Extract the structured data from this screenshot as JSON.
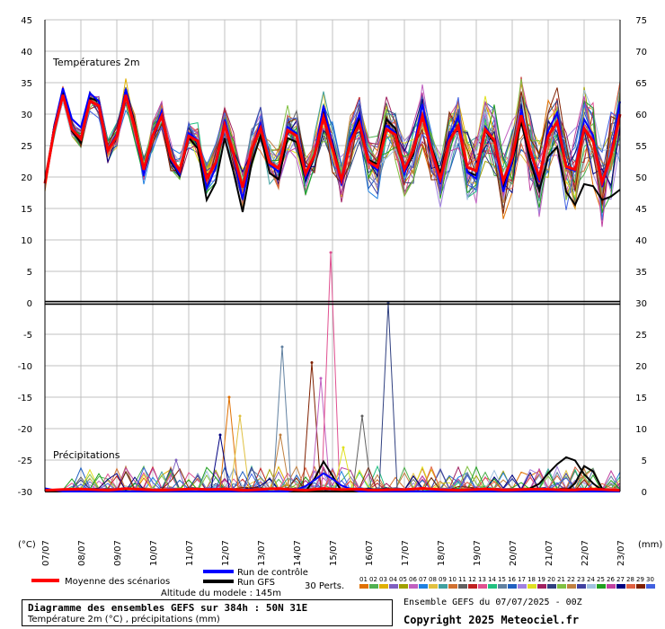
{
  "chart_data": {
    "type": "line",
    "temp_label": "Températures 2m",
    "precip_label": "Précipitations",
    "x_labels": [
      "07/07",
      "08/07",
      "09/07",
      "10/07",
      "11/07",
      "12/07",
      "13/07",
      "14/07",
      "15/07",
      "16/07",
      "17/07",
      "18/07",
      "19/07",
      "20/07",
      "21/07",
      "22/07",
      "23/07"
    ],
    "y_left_ticks": [
      45,
      40,
      35,
      30,
      25,
      20,
      15,
      10,
      5,
      0,
      -5,
      -10,
      -15,
      -20,
      -25,
      -30
    ],
    "y_right_ticks": [
      75,
      70,
      65,
      60,
      55,
      50,
      45,
      40,
      35,
      30,
      25,
      20,
      15,
      10,
      5,
      0
    ],
    "left_unit": "(°C)",
    "right_unit": "(mm)",
    "ylim_temp": [
      -30,
      45
    ],
    "ylim_precip": [
      0,
      75
    ],
    "grid": true,
    "legend": {
      "mean": "Moyenne des scénarios",
      "control": "Run de contrôle",
      "gfs": "Run GFS",
      "perts": "30 Perts.",
      "altitude": "Altitude du modele : 145m"
    },
    "pert_labels": [
      "01",
      "02",
      "03",
      "04",
      "05",
      "06",
      "07",
      "08",
      "09",
      "10",
      "11",
      "12",
      "13",
      "14",
      "15",
      "16",
      "17",
      "18",
      "19",
      "20",
      "21",
      "22",
      "23",
      "24",
      "25",
      "26",
      "27",
      "28",
      "29",
      "30"
    ],
    "pert_colors": [
      "#e07000",
      "#50b050",
      "#e0b000",
      "#8060c0",
      "#a0a000",
      "#c060c0",
      "#2080e0",
      "#e0c040",
      "#40a0a0",
      "#d07030",
      "#606060",
      "#c02020",
      "#e05090",
      "#20c080",
      "#6080a0",
      "#2060c0",
      "#a080e0",
      "#e0e020",
      "#a02060",
      "#304080",
      "#80c040",
      "#c08040",
      "#4040a0",
      "#a0c0e0",
      "#20a020",
      "#c040a0",
      "#000080",
      "#e06040",
      "#802000",
      "#4060e0"
    ],
    "mean_temp": [
      19,
      34,
      24,
      35,
      22,
      34,
      21,
      31,
      19,
      29,
      18,
      29,
      18,
      29,
      19,
      30,
      19,
      30,
      19,
      30,
      19,
      30,
      20,
      30,
      19,
      30,
      18,
      30,
      18,
      30,
      19,
      31,
      18,
      30,
      18,
      30
    ],
    "control_temp": [
      19,
      35,
      26,
      36,
      22,
      35,
      20,
      32,
      18,
      30,
      16,
      30,
      16,
      30,
      18,
      31,
      18,
      32,
      18,
      32,
      18,
      31,
      19,
      32,
      18,
      32,
      16,
      31,
      16,
      31,
      18,
      33,
      17,
      32,
      17,
      32
    ],
    "gfs_temp": [
      19,
      35,
      23,
      36,
      22,
      35,
      21,
      31,
      18,
      29,
      14,
      27,
      14,
      28,
      17,
      29,
      18,
      31,
      19,
      31,
      19,
      32,
      19,
      30,
      20,
      30,
      17,
      30,
      17,
      29,
      17,
      27,
      14,
      20,
      16,
      18
    ],
    "mean_precip": [
      0.2,
      0.3,
      0.4,
      0.3,
      0.2,
      0.5,
      0.3,
      0.2,
      0.3,
      0.4,
      0.3,
      0.4,
      0.2,
      0.3,
      0.5,
      0.3,
      0.2,
      0.5,
      0.3,
      0.4,
      0.2,
      0.3,
      0.3,
      0.5,
      0.3,
      0.2,
      0.3,
      0.4,
      0.2,
      0.3,
      0.4,
      0.3,
      0.2,
      0.4,
      0.3,
      0.2
    ],
    "control_precip": [
      0.5,
      0,
      0,
      0,
      0,
      0,
      0,
      0,
      0,
      0,
      0,
      0,
      0,
      0,
      0,
      0,
      1,
      3,
      1,
      0,
      0,
      0,
      0,
      0,
      0,
      0,
      0,
      0,
      0,
      0,
      0,
      0,
      0,
      0,
      0,
      0
    ],
    "gfs_precip": [
      0.4,
      0,
      0,
      0,
      0,
      0,
      0,
      0,
      0,
      0,
      0,
      0,
      0,
      0,
      0,
      0,
      0,
      5,
      0,
      0,
      0,
      0,
      0,
      0,
      0,
      0,
      0,
      0,
      0,
      0,
      1,
      4,
      6,
      2,
      0,
      0
    ],
    "gfs_precip_tail": [
      0,
      0,
      0,
      0,
      0,
      0,
      0,
      0,
      0,
      0,
      0,
      0,
      0,
      0,
      0,
      0,
      0,
      0,
      0,
      0,
      0,
      0,
      0,
      0,
      0,
      0,
      0,
      0,
      0,
      0,
      0,
      0,
      0,
      5,
      0,
      0
    ],
    "extra_precip_peaks": [
      {
        "x": 20.5,
        "v": 15
      },
      {
        "x": 21.7,
        "v": 12
      },
      {
        "x": 26.4,
        "v": 23
      },
      {
        "x": 26.2,
        "v": 9
      },
      {
        "x": 29.7,
        "v": 20.5
      },
      {
        "x": 30.7,
        "v": 18
      },
      {
        "x": 31.8,
        "v": 38
      },
      {
        "x": 38.2,
        "v": 30
      },
      {
        "x": 19.5,
        "v": 9
      },
      {
        "x": 14.6,
        "v": 5
      },
      {
        "x": 35.3,
        "v": 12
      },
      {
        "x": 33.2,
        "v": 7
      }
    ]
  },
  "footer": {
    "title": "Diagramme des ensembles GEFS sur 384h : 50N 31E",
    "subtitle": "Température 2m (°C) , précipitations (mm)",
    "ensemble_date": "Ensemble GEFS du 07/07/2025 - 00Z",
    "copyright": "Copyright 2025 Meteociel.fr"
  },
  "colors": {
    "mean": "#ff0000",
    "control": "#0000ff",
    "gfs": "#000000",
    "grid": "#c0c0c0"
  }
}
